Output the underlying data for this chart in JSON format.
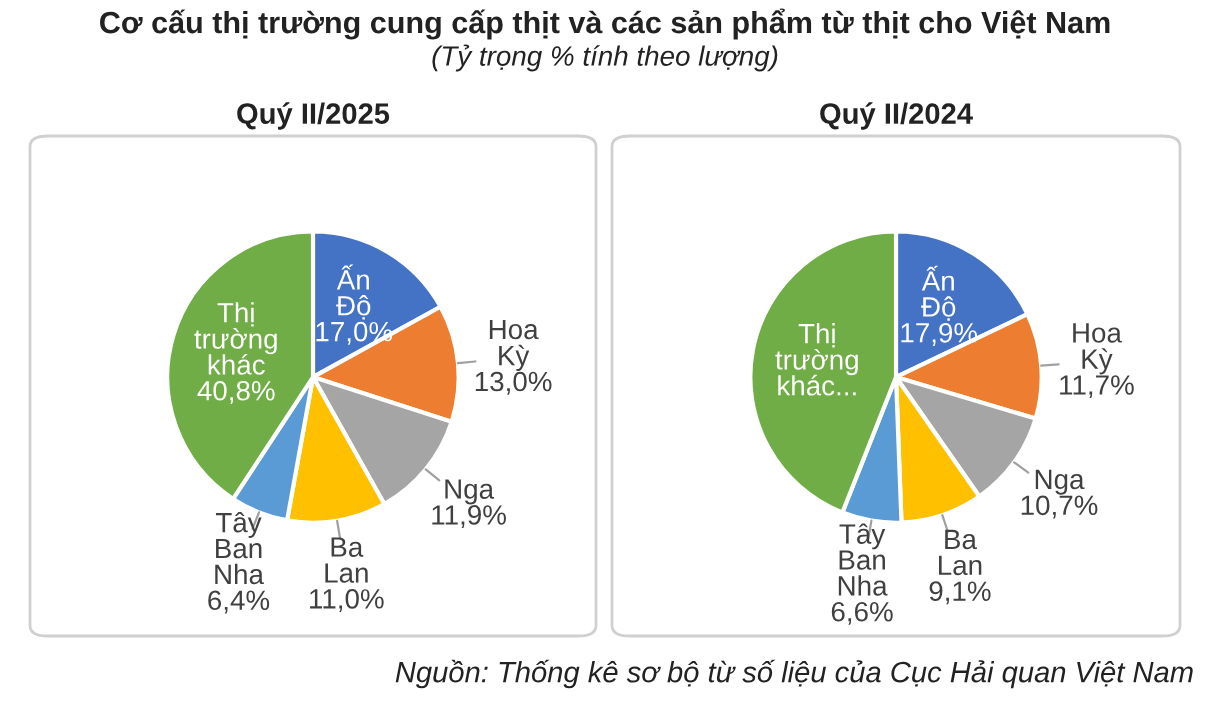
{
  "chart_data": [
    {
      "type": "pie",
      "title": "Quý II/2025",
      "categories": [
        "Ấn Độ",
        "Hoa Kỳ",
        "Nga",
        "Ba Lan",
        "Tây Ban Nha",
        "Thị trường khác"
      ],
      "values": [
        17.0,
        13.0,
        11.9,
        11.0,
        6.4,
        40.8
      ],
      "value_labels": [
        "17,0%",
        "13,0%",
        "11,9%",
        "11,0%",
        "6,4%",
        "40,8%"
      ],
      "colors": [
        "#4472c4",
        "#ed7d31",
        "#a5a5a5",
        "#ffc000",
        "#5b9bd5",
        "#70ad47"
      ],
      "annotations": [
        "Cơ cấu thị trường cung cấp thịt và các sản phẩm từ thịt cho Việt Nam",
        "(Tỷ trọng % tính theo lượng)",
        "Nguồn: Thống kê sơ bộ từ số liệu của Cục Hải quan Việt Nam"
      ]
    },
    {
      "type": "pie",
      "title": "Quý II/2024",
      "categories": [
        "Ấn Độ",
        "Hoa Kỳ",
        "Nga",
        "Ba Lan",
        "Tây Ban Nha",
        "Thị trường khác..."
      ],
      "values": [
        17.9,
        11.7,
        10.7,
        9.1,
        6.6,
        44.0
      ],
      "value_labels": [
        "17,9%",
        "11,7%",
        "10,7%",
        "9,1%",
        "6,6%",
        null
      ],
      "colors": [
        "#4472c4",
        "#ed7d31",
        "#a5a5a5",
        "#ffc000",
        "#5b9bd5",
        "#70ad47"
      ]
    }
  ]
}
